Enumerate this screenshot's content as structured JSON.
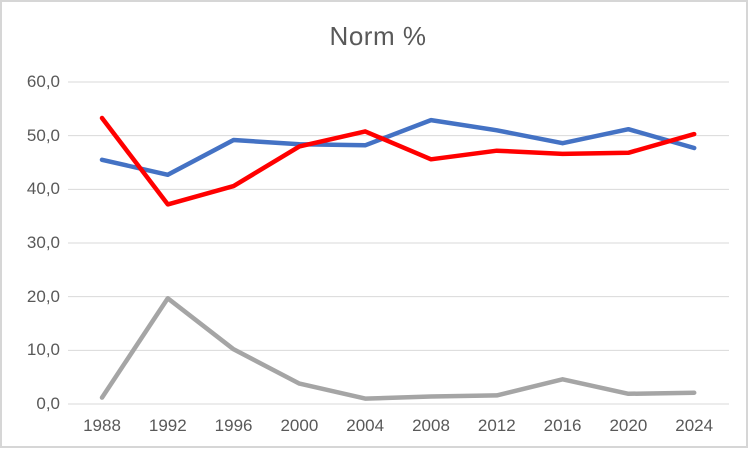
{
  "window": {
    "background": "#FFFFFF",
    "border_color": "#D6D6D6"
  },
  "chart_data": {
    "type": "line",
    "title": "Norm %",
    "title_color": "#595959",
    "tick_color": "#595959",
    "gridline_color": "#D9D9D9",
    "grid": true,
    "legend": "none",
    "categories": [
      "1988",
      "1992",
      "1996",
      "2000",
      "2004",
      "2008",
      "2012",
      "2016",
      "2020",
      "2024"
    ],
    "series": [
      {
        "id": "blue",
        "color": "#4472C4",
        "values": [
          45.5,
          42.7,
          49.2,
          48.4,
          48.2,
          52.9,
          51.0,
          48.6,
          51.2,
          47.7
        ]
      },
      {
        "id": "red",
        "color": "#FF0000",
        "values": [
          53.3,
          37.2,
          40.6,
          48.0,
          50.8,
          45.6,
          47.2,
          46.6,
          46.8,
          50.3
        ]
      },
      {
        "id": "gray",
        "color": "#A5A5A5",
        "values": [
          1.2,
          19.7,
          10.2,
          3.8,
          1.0,
          1.4,
          1.6,
          4.6,
          1.9,
          2.1
        ]
      }
    ],
    "y_axis": {
      "min": 0,
      "max": 60,
      "step": 10,
      "tick_labels": [
        "0,0",
        "10,0",
        "20,0",
        "30,0",
        "40,0",
        "50,0",
        "60,0"
      ]
    },
    "x_axis": {
      "tick_labels": [
        "1988",
        "1992",
        "1996",
        "2000",
        "2004",
        "2008",
        "2012",
        "2016",
        "2020",
        "2024"
      ]
    }
  }
}
